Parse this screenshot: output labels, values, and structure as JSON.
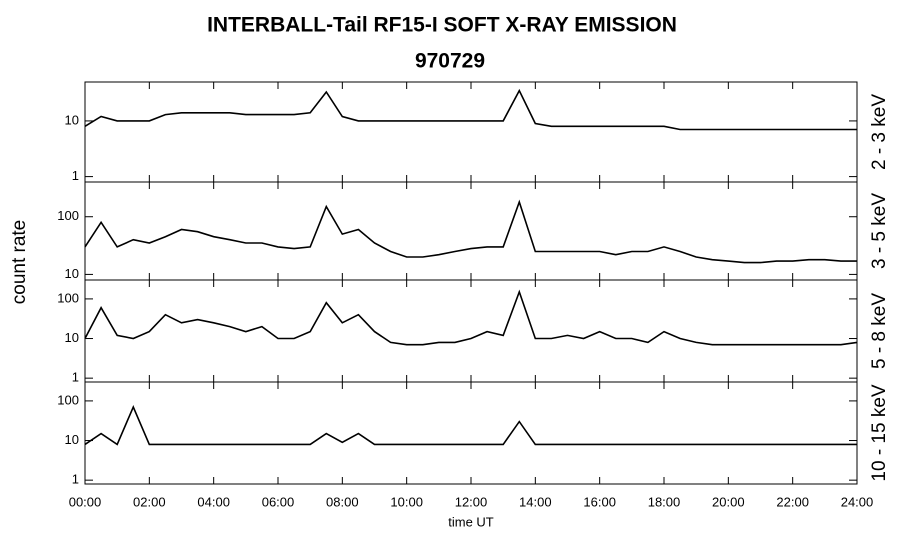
{
  "chart_data": [
    {
      "type": "line",
      "title": "INTERBALL-Tail RF15-I SOFT X-RAY EMISSION",
      "subtitle": "970729",
      "ylabel": "count rate",
      "label": "2 - 3 keV",
      "log_y": true,
      "color": "#000000",
      "x": [
        0,
        0.5,
        1,
        1.5,
        2,
        2.5,
        3,
        3.5,
        4,
        4.5,
        5,
        5.5,
        6,
        6.5,
        7,
        7.5,
        8,
        8.5,
        9,
        9.5,
        10,
        10.5,
        11,
        11.5,
        12,
        12.5,
        13,
        13.5,
        14,
        14.5,
        15,
        15.5,
        16,
        16.5,
        17,
        17.5,
        18,
        18.5,
        19,
        19.5,
        20,
        20.5,
        21,
        21.5,
        22,
        22.5,
        23,
        23.5,
        24
      ],
      "values": [
        8,
        12,
        10,
        10,
        10,
        13,
        14,
        14,
        14,
        14,
        13,
        13,
        13,
        13,
        14,
        33,
        12,
        10,
        10,
        10,
        10,
        10,
        10,
        10,
        10,
        10,
        10,
        35,
        9,
        8,
        8,
        8,
        8,
        8,
        8,
        8,
        8,
        7,
        7,
        7,
        7,
        7,
        7,
        7,
        7,
        7,
        7,
        7,
        7
      ],
      "xlim": [
        0,
        24
      ],
      "ylim": [
        0.8,
        50
      ],
      "yticks": [
        1,
        10
      ]
    },
    {
      "type": "line",
      "label": "3 - 5 keV",
      "log_y": true,
      "color": "#000000",
      "x": [
        0,
        0.5,
        1,
        1.5,
        2,
        2.5,
        3,
        3.5,
        4,
        4.5,
        5,
        5.5,
        6,
        6.5,
        7,
        7.5,
        8,
        8.5,
        9,
        9.5,
        10,
        10.5,
        11,
        11.5,
        12,
        12.5,
        13,
        13.5,
        14,
        14.5,
        15,
        15.5,
        16,
        16.5,
        17,
        17.5,
        18,
        18.5,
        19,
        19.5,
        20,
        20.5,
        21,
        21.5,
        22,
        22.5,
        23,
        23.5,
        24
      ],
      "values": [
        30,
        80,
        30,
        40,
        35,
        45,
        60,
        55,
        45,
        40,
        35,
        35,
        30,
        28,
        30,
        150,
        50,
        60,
        35,
        25,
        20,
        20,
        22,
        25,
        28,
        30,
        30,
        180,
        25,
        25,
        25,
        25,
        25,
        22,
        25,
        25,
        30,
        25,
        20,
        18,
        17,
        16,
        16,
        17,
        17,
        18,
        18,
        17,
        17
      ],
      "xlim": [
        0,
        24
      ],
      "ylim": [
        8,
        400
      ],
      "yticks": [
        10,
        100
      ]
    },
    {
      "type": "line",
      "label": "5 - 8 keV",
      "log_y": true,
      "color": "#000000",
      "x": [
        0,
        0.5,
        1,
        1.5,
        2,
        2.5,
        3,
        3.5,
        4,
        4.5,
        5,
        5.5,
        6,
        6.5,
        7,
        7.5,
        8,
        8.5,
        9,
        9.5,
        10,
        10.5,
        11,
        11.5,
        12,
        12.5,
        13,
        13.5,
        14,
        14.5,
        15,
        15.5,
        16,
        16.5,
        17,
        17.5,
        18,
        18.5,
        19,
        19.5,
        20,
        20.5,
        21,
        21.5,
        22,
        22.5,
        23,
        23.5,
        24
      ],
      "values": [
        10,
        60,
        12,
        10,
        15,
        40,
        25,
        30,
        25,
        20,
        15,
        20,
        10,
        10,
        15,
        80,
        25,
        40,
        15,
        8,
        7,
        7,
        8,
        8,
        10,
        15,
        12,
        150,
        10,
        10,
        12,
        10,
        15,
        10,
        10,
        8,
        15,
        10,
        8,
        7,
        7,
        7,
        7,
        7,
        7,
        7,
        7,
        7,
        8
      ],
      "xlim": [
        0,
        24
      ],
      "ylim": [
        0.8,
        300
      ],
      "yticks": [
        1,
        10,
        100
      ]
    },
    {
      "type": "line",
      "label": "10 - 15 keV",
      "xlabel": "time UT",
      "log_y": true,
      "color": "#000000",
      "x": [
        0,
        0.5,
        1,
        1.5,
        2,
        2.5,
        3,
        3.5,
        4,
        4.5,
        5,
        5.5,
        6,
        6.5,
        7,
        7.5,
        8,
        8.5,
        9,
        9.5,
        10,
        10.5,
        11,
        11.5,
        12,
        12.5,
        13,
        13.5,
        14,
        14.5,
        15,
        15.5,
        16,
        16.5,
        17,
        17.5,
        18,
        18.5,
        19,
        19.5,
        20,
        20.5,
        21,
        21.5,
        22,
        22.5,
        23,
        23.5,
        24
      ],
      "values": [
        8,
        15,
        8,
        70,
        8,
        8,
        8,
        8,
        8,
        8,
        8,
        8,
        8,
        8,
        8,
        15,
        9,
        15,
        8,
        8,
        8,
        8,
        8,
        8,
        8,
        8,
        8,
        30,
        8,
        8,
        8,
        8,
        8,
        8,
        8,
        8,
        8,
        8,
        8,
        8,
        8,
        8,
        8,
        8,
        8,
        8,
        8,
        8,
        8
      ],
      "xlim": [
        0,
        24
      ],
      "ylim": [
        0.8,
        300
      ],
      "yticks": [
        1,
        10,
        100
      ],
      "xticks": [
        {
          "value": 0,
          "label": "00:00"
        },
        {
          "value": 2,
          "label": "02:00"
        },
        {
          "value": 4,
          "label": "04:00"
        },
        {
          "value": 6,
          "label": "06:00"
        },
        {
          "value": 8,
          "label": "08:00"
        },
        {
          "value": 10,
          "label": "10:00"
        },
        {
          "value": 12,
          "label": "12:00"
        },
        {
          "value": 14,
          "label": "14:00"
        },
        {
          "value": 16,
          "label": "16:00"
        },
        {
          "value": 18,
          "label": "18:00"
        },
        {
          "value": 20,
          "label": "20:00"
        },
        {
          "value": 22,
          "label": "22:00"
        },
        {
          "value": 24,
          "label": "24:00"
        }
      ]
    }
  ]
}
